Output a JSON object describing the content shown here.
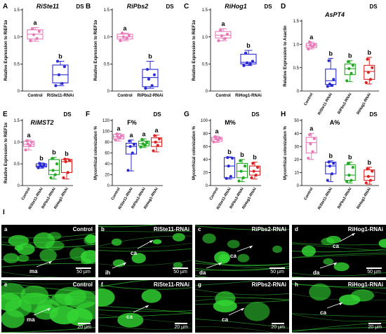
{
  "panel_I_label": "I",
  "chart_data": [
    {
      "type": "box",
      "panel": "A",
      "title": "RiSte11",
      "tag": "DS",
      "ylabel": "Relative Expression to RiEF1α",
      "ylim": [
        0,
        1.5
      ],
      "yticks": [
        0,
        0.5,
        1.0,
        1.5
      ],
      "categories": [
        "Control",
        "RiSte11-RNAi"
      ],
      "xlabel_rotated": false,
      "boxes": [
        {
          "category": "Control",
          "color": "#e879b8",
          "min": 0.92,
          "q1": 0.96,
          "median": 1.05,
          "q3": 1.13,
          "max": 1.17,
          "points": [
            0.93,
            0.97,
            1.04,
            1.1,
            1.15
          ],
          "letter": "a"
        },
        {
          "category": "RiSte11-RNAi",
          "color": "#2b2bd6",
          "min": 0.1,
          "q1": 0.15,
          "median": 0.3,
          "q3": 0.48,
          "max": 0.55,
          "points": [
            0.1,
            0.14,
            0.3,
            0.45,
            0.55
          ],
          "letter": "b"
        }
      ]
    },
    {
      "type": "box",
      "panel": "B",
      "title": "RiPbs2",
      "tag": "DS",
      "ylabel": "Relative Expression to RiEF1α",
      "ylim": [
        0,
        1.5
      ],
      "yticks": [
        0,
        0.5,
        1.0,
        1.5
      ],
      "categories": [
        "Control",
        "RiPbs2-RNAi"
      ],
      "xlabel_rotated": false,
      "boxes": [
        {
          "category": "Control",
          "color": "#e879b8",
          "min": 0.93,
          "q1": 0.96,
          "median": 1.0,
          "q3": 1.05,
          "max": 1.07,
          "points": [
            0.93,
            0.97,
            1.0,
            1.03,
            1.07
          ],
          "letter": "a"
        },
        {
          "category": "RiPbs2-RNAi",
          "color": "#2b2bd6",
          "min": 0.05,
          "q1": 0.08,
          "median": 0.25,
          "q3": 0.4,
          "max": 0.55,
          "points": [
            0.05,
            0.1,
            0.22,
            0.3,
            0.4
          ],
          "letter": "b"
        }
      ]
    },
    {
      "type": "box",
      "panel": "C",
      "title": "RiHog1",
      "tag": "DS",
      "ylabel": "Relative Expression to RiEF1α",
      "ylim": [
        0,
        1.5
      ],
      "yticks": [
        0,
        0.5,
        1.0,
        1.5
      ],
      "categories": [
        "Control",
        "RiHog1-RNAi"
      ],
      "xlabel_rotated": false,
      "boxes": [
        {
          "category": "Control",
          "color": "#e879b8",
          "min": 0.93,
          "q1": 0.98,
          "median": 1.03,
          "q3": 1.1,
          "max": 1.15,
          "points": [
            0.93,
            0.97,
            1.02,
            1.05,
            1.12
          ],
          "letter": "a"
        },
        {
          "category": "RiHog1-RNAi",
          "color": "#2b2bd6",
          "min": 0.47,
          "q1": 0.5,
          "median": 0.53,
          "q3": 0.68,
          "max": 0.75,
          "points": [
            0.47,
            0.5,
            0.52,
            0.55,
            0.7
          ],
          "letter": "b"
        }
      ]
    },
    {
      "type": "box",
      "panel": "D",
      "title": "AsPT4",
      "tag": "DS",
      "ylabel": "Relative Expression to Asactin",
      "ylim": [
        0,
        1.5
      ],
      "yticks": [
        0,
        0.5,
        1.0,
        1.5
      ],
      "categories": [
        "Control",
        "RiSte11-RNAi",
        "RiPbs2-RNAi",
        "RiHog1-RNAi"
      ],
      "xlabel_rotated": true,
      "boxes": [
        {
          "category": "Control",
          "color": "#e879b8",
          "min": 0.9,
          "q1": 0.93,
          "median": 0.97,
          "q3": 1.02,
          "max": 1.05,
          "points": [
            0.9,
            0.95,
            0.98,
            1.0,
            1.05
          ],
          "letter": "a"
        },
        {
          "category": "RiSte11-RNAi",
          "color": "#2b2bd6",
          "min": 0.1,
          "q1": 0.14,
          "median": 0.22,
          "q3": 0.47,
          "max": 0.7,
          "points": [
            0.1,
            0.12,
            0.15,
            0.25,
            0.65
          ],
          "letter": "b"
        },
        {
          "category": "RiPbs2-RNAi",
          "color": "#22aa22",
          "min": 0.2,
          "q1": 0.35,
          "median": 0.48,
          "q3": 0.58,
          "max": 0.65,
          "points": [
            0.22,
            0.38,
            0.48,
            0.55,
            0.63
          ],
          "letter": "b"
        },
        {
          "category": "RiHog1-RNAi",
          "color": "#dd2222",
          "min": 0.15,
          "q1": 0.25,
          "median": 0.42,
          "q3": 0.55,
          "max": 0.72,
          "points": [
            0.18,
            0.25,
            0.4,
            0.5,
            0.68
          ],
          "letter": "b"
        }
      ]
    },
    {
      "type": "box",
      "panel": "E",
      "title": "RiMST2",
      "tag": "DS",
      "ylabel": "Relative Expression to RiEF1α",
      "ylim": [
        0,
        1.5
      ],
      "yticks": [
        0,
        0.5,
        1.0,
        1.5
      ],
      "categories": [
        "Control",
        "RiSte11-RNAi",
        "RiPbs2-RNAi",
        "RiHog1-RNAi"
      ],
      "xlabel_rotated": true,
      "boxes": [
        {
          "category": "Control",
          "color": "#e879b8",
          "min": 0.82,
          "q1": 0.9,
          "median": 0.95,
          "q3": 1.02,
          "max": 1.05,
          "points": [
            0.82,
            0.92,
            0.96,
            1.0,
            1.03
          ],
          "letter": "a"
        },
        {
          "category": "RiSte11-RNAi",
          "color": "#2b2bd6",
          "min": 0.4,
          "q1": 0.43,
          "median": 0.45,
          "q3": 0.5,
          "max": 0.52,
          "points": [
            0.41,
            0.44,
            0.46,
            0.49,
            0.51
          ],
          "letter": "b"
        },
        {
          "category": "RiPbs2-RNAi",
          "color": "#22aa22",
          "min": 0.15,
          "q1": 0.25,
          "median": 0.35,
          "q3": 0.6,
          "max": 0.65,
          "points": [
            0.18,
            0.25,
            0.35,
            0.5,
            0.62
          ],
          "letter": "b"
        },
        {
          "category": "RiHog1-RNAi",
          "color": "#dd2222",
          "min": 0.15,
          "q1": 0.3,
          "median": 0.55,
          "q3": 0.6,
          "max": 0.62,
          "points": [
            0.18,
            0.3,
            0.55,
            0.58,
            0.61
          ],
          "letter": "b"
        }
      ]
    },
    {
      "type": "box",
      "panel": "F",
      "title": "F%",
      "tag": "DS",
      "ylabel": "Mycorrhizal colonization %",
      "ylim": [
        0,
        120
      ],
      "yticks": [
        0,
        20,
        40,
        60,
        80,
        100,
        120
      ],
      "categories": [
        "Control",
        "RiSte11-RNAi",
        "RiPbs2-RNAi",
        "RiHog1-RNAi"
      ],
      "xlabel_rotated": true,
      "boxes": [
        {
          "category": "Control",
          "color": "#e879b8",
          "min": 82,
          "q1": 86,
          "median": 90,
          "q3": 94,
          "max": 96,
          "points": [
            84,
            88,
            90,
            92,
            95
          ],
          "letter": "a"
        },
        {
          "category": "RiSte11-RNAi",
          "color": "#2b2bd6",
          "min": 27,
          "q1": 58,
          "median": 72,
          "q3": 78,
          "max": 84,
          "points": [
            28,
            60,
            72,
            76,
            82
          ],
          "letter": "a"
        },
        {
          "category": "RiPbs2-RNAi",
          "color": "#22aa22",
          "min": 70,
          "q1": 73,
          "median": 77,
          "q3": 82,
          "max": 86,
          "points": [
            71,
            74,
            77,
            80,
            85
          ],
          "letter": "a"
        },
        {
          "category": "RiHog1-RNAi",
          "color": "#dd2222",
          "min": 62,
          "q1": 72,
          "median": 80,
          "q3": 88,
          "max": 93,
          "points": [
            64,
            74,
            80,
            86,
            92
          ],
          "letter": "a"
        }
      ]
    },
    {
      "type": "box",
      "panel": "G",
      "title": "M%",
      "tag": "DS",
      "ylabel": "Mycorrhizal colonization %",
      "ylim": [
        0,
        100
      ],
      "yticks": [
        0,
        20,
        40,
        60,
        80,
        100
      ],
      "categories": [
        "Control",
        "RiSte11-RNAi",
        "RiPbs2-RNAi",
        "RiHog1-RNAi"
      ],
      "xlabel_rotated": true,
      "boxes": [
        {
          "category": "Control",
          "color": "#e879b8",
          "min": 66,
          "q1": 68,
          "median": 71,
          "q3": 74,
          "max": 76,
          "points": [
            67,
            70,
            72,
            73,
            75
          ],
          "letter": "a"
        },
        {
          "category": "RiSte11-RNAi",
          "color": "#2b2bd6",
          "min": 10,
          "q1": 12,
          "median": 30,
          "q3": 43,
          "max": 44,
          "points": [
            11,
            14,
            30,
            42,
            43
          ],
          "letter": "b"
        },
        {
          "category": "RiPbs2-RNAi",
          "color": "#22aa22",
          "min": 6,
          "q1": 12,
          "median": 22,
          "q3": 34,
          "max": 40,
          "points": [
            7,
            12,
            22,
            30,
            38
          ],
          "letter": "b"
        },
        {
          "category": "RiHog1-RNAi",
          "color": "#dd2222",
          "min": 10,
          "q1": 16,
          "median": 22,
          "q3": 30,
          "max": 36,
          "points": [
            12,
            16,
            22,
            28,
            34
          ],
          "letter": "b"
        }
      ]
    },
    {
      "type": "box",
      "panel": "H",
      "title": "A%",
      "tag": "DS",
      "ylabel": "Mycorrhizal colonization %",
      "ylim": [
        0,
        50
      ],
      "yticks": [
        0,
        10,
        20,
        30,
        40,
        50
      ],
      "categories": [
        "Control",
        "RiSte11-RNAi",
        "RiPbs2-RNAi",
        "RiHog1-RNAi"
      ],
      "xlabel_rotated": true,
      "boxes": [
        {
          "category": "Control",
          "color": "#e879b8",
          "min": 20,
          "q1": 25,
          "median": 33,
          "q3": 37,
          "max": 40,
          "points": [
            21,
            26,
            32,
            36,
            39
          ],
          "letter": "a"
        },
        {
          "category": "RiSte11-RNAi",
          "color": "#2b2bd6",
          "min": 3,
          "q1": 9,
          "median": 15,
          "q3": 18,
          "max": 19,
          "points": [
            4,
            9,
            15,
            17,
            18
          ],
          "letter": "b"
        },
        {
          "category": "RiPbs2-RNAi",
          "color": "#22aa22",
          "min": 2,
          "q1": 4,
          "median": 8,
          "q3": 16,
          "max": 18,
          "points": [
            3,
            4,
            8,
            14,
            17
          ],
          "letter": "b"
        },
        {
          "category": "RiHog1-RNAi",
          "color": "#dd2222",
          "min": 1,
          "q1": 4,
          "median": 7,
          "q3": 12,
          "max": 14,
          "points": [
            2,
            4,
            7,
            11,
            13
          ],
          "letter": "b"
        }
      ]
    }
  ],
  "micrographs": [
    {
      "letter": "a",
      "title": "Control",
      "scale": "50 µm",
      "annos": [
        {
          "text": "ma",
          "tx": 40,
          "ty": 64,
          "ax": 72,
          "ay": 52
        }
      ]
    },
    {
      "letter": "b",
      "title": "RiSte11-RNAi",
      "scale": "50 µm",
      "annos": [
        {
          "text": "ca",
          "tx": 46,
          "ty": 38,
          "ax": 78,
          "ay": 22
        },
        {
          "text": "ih",
          "tx": 10,
          "ty": 66,
          "ax": 40,
          "ay": 54
        }
      ]
    },
    {
      "letter": "c",
      "title": "RiPbs2-RNAi",
      "scale": "50 µm",
      "annos": [
        {
          "text": "ca",
          "tx": 50,
          "ty": 42,
          "ax": 82,
          "ay": 30
        },
        {
          "text": "da",
          "tx": 6,
          "ty": 66,
          "ax": 38,
          "ay": 54
        }
      ]
    },
    {
      "letter": "d",
      "title": "RiHog1-RNAi",
      "scale": "50 µm",
      "annos": [
        {
          "text": "ca",
          "tx": 58,
          "ty": 28,
          "ax": 90,
          "ay": 12
        },
        {
          "text": "da",
          "tx": 30,
          "ty": 66,
          "ax": 64,
          "ay": 54
        }
      ]
    },
    {
      "letter": "e",
      "title": "Control",
      "scale": "20 µm",
      "annos": [
        {
          "text": "ma",
          "tx": 36,
          "ty": 54,
          "ax": 70,
          "ay": 40
        }
      ]
    },
    {
      "letter": "f",
      "title": "RiSte11-RNAi",
      "scale": "20 µm",
      "annos": [
        {
          "text": "ca",
          "tx": 40,
          "ty": 50,
          "ax": 72,
          "ay": 36
        }
      ]
    },
    {
      "letter": "g",
      "title": "RiPbs2-RNAi",
      "scale": "20 µm",
      "annos": [
        {
          "text": "ca",
          "tx": 38,
          "ty": 54,
          "ax": 70,
          "ay": 40
        }
      ]
    },
    {
      "letter": "h",
      "title": "RiHog1-RNAi",
      "scale": "20 µm",
      "annos": [
        {
          "text": "ca",
          "tx": 40,
          "ty": 44,
          "ax": 72,
          "ay": 32
        }
      ]
    }
  ]
}
